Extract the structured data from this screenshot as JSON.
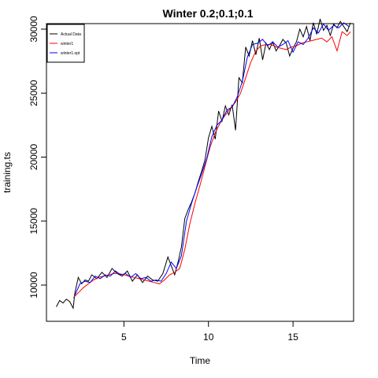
{
  "chart_data": {
    "type": "line",
    "title": "Winter 0.2;0.1;0.1",
    "xlabel": "Time",
    "ylabel": "training.ts",
    "xlim": [
      0.42,
      18.58
    ],
    "ylim": [
      7170,
      30430
    ],
    "x_ticks": [
      5,
      10,
      15
    ],
    "y_ticks": [
      10000,
      15000,
      20000,
      25000,
      30000
    ],
    "x_tick_labels": [
      "5",
      "10",
      "15"
    ],
    "y_tick_labels": [
      "10000",
      "15000",
      "20000",
      "25000",
      "30000"
    ],
    "grid": false,
    "legend_position": "top-left",
    "series": [
      {
        "name": "Actual Data",
        "color": "#000000",
        "x": [
          1.0,
          1.2,
          1.4,
          1.6,
          1.8,
          2.0,
          2.1,
          2.3,
          2.5,
          2.7,
          2.9,
          3.1,
          3.4,
          3.7,
          4.0,
          4.3,
          4.6,
          4.9,
          5.2,
          5.5,
          5.8,
          6.1,
          6.4,
          6.7,
          7.0,
          7.3,
          7.6,
          7.8,
          8.0,
          8.2,
          8.4,
          8.6,
          8.8,
          9.0,
          9.2,
          9.4,
          9.6,
          9.8,
          10.0,
          10.2,
          10.4,
          10.6,
          10.8,
          11.0,
          11.2,
          11.4,
          11.6,
          11.8,
          12.0,
          12.2,
          12.4,
          12.6,
          12.8,
          13.0,
          13.2,
          13.4,
          13.6,
          13.8,
          14.0,
          14.2,
          14.4,
          14.6,
          14.8,
          15.0,
          15.2,
          15.4,
          15.6,
          15.8,
          16.0,
          16.2,
          16.4,
          16.6,
          16.8,
          17.0,
          17.2,
          17.4,
          17.6,
          17.8,
          18.0,
          18.2,
          18.4
        ],
        "values": [
          8300,
          8800,
          8600,
          8900,
          8700,
          8200,
          9400,
          10600,
          10100,
          10400,
          10300,
          10800,
          10500,
          11000,
          10600,
          11300,
          10900,
          10700,
          11100,
          10300,
          10800,
          10200,
          10700,
          10400,
          10300,
          10900,
          12200,
          11500,
          10800,
          11800,
          13000,
          15200,
          15900,
          16500,
          17200,
          18100,
          18900,
          19800,
          21500,
          22400,
          21400,
          23600,
          22800,
          24000,
          23300,
          24100,
          22100,
          26200,
          25800,
          28600,
          27900,
          29100,
          28000,
          29300,
          27600,
          28900,
          28400,
          29000,
          28300,
          28700,
          29200,
          28900,
          27900,
          28500,
          29000,
          30000,
          29400,
          30200,
          29100,
          30500,
          29600,
          30800,
          29900,
          30300,
          29500,
          30400,
          30100,
          30600,
          30200,
          29800,
          30500
        ]
      },
      {
        "name": "winter1",
        "color": "#ff0000",
        "x": [
          2.0,
          2.3,
          2.6,
          2.9,
          3.2,
          3.5,
          3.8,
          4.1,
          4.4,
          4.7,
          5.0,
          5.3,
          5.6,
          5.9,
          6.2,
          6.5,
          6.8,
          7.1,
          7.4,
          7.7,
          8.0,
          8.3,
          8.6,
          8.9,
          9.2,
          9.5,
          9.8,
          10.1,
          10.4,
          10.7,
          11.0,
          11.3,
          11.6,
          11.9,
          12.2,
          12.5,
          12.8,
          13.1,
          13.4,
          13.7,
          14.0,
          14.3,
          14.6,
          14.9,
          15.2,
          15.5,
          15.8,
          16.1,
          16.4,
          16.7,
          17.0,
          17.3,
          17.6,
          17.9,
          18.2,
          18.4
        ],
        "values": [
          9000,
          9400,
          9800,
          10100,
          10400,
          10600,
          10700,
          10800,
          10900,
          10900,
          10800,
          10700,
          10600,
          10500,
          10400,
          10300,
          10200,
          10100,
          10400,
          10800,
          11000,
          11300,
          12800,
          14800,
          16400,
          17800,
          19300,
          20800,
          21900,
          22700,
          23300,
          23800,
          24300,
          25000,
          26200,
          27400,
          28300,
          28700,
          28800,
          28800,
          28600,
          28500,
          28400,
          28600,
          28700,
          28900,
          29000,
          29100,
          29200,
          29300,
          29000,
          29400,
          28300,
          29800,
          29500,
          29800
        ]
      },
      {
        "name": "winter1.opt",
        "color": "#0000ff",
        "x": [
          2.1,
          2.4,
          2.7,
          3.0,
          3.3,
          3.6,
          3.9,
          4.2,
          4.5,
          4.8,
          5.1,
          5.4,
          5.7,
          6.0,
          6.3,
          6.6,
          6.9,
          7.2,
          7.5,
          7.8,
          8.1,
          8.4,
          8.7,
          9.0,
          9.3,
          9.6,
          9.9,
          10.2,
          10.5,
          10.8,
          11.1,
          11.4,
          11.7,
          12.0,
          12.3,
          12.6,
          12.9,
          13.2,
          13.5,
          13.8,
          14.1,
          14.4,
          14.7,
          15.0,
          15.3,
          15.6,
          15.9,
          16.2,
          16.5,
          16.8,
          17.1,
          17.4,
          17.7,
          18.0,
          18.3
        ],
        "values": [
          9200,
          10100,
          10300,
          10200,
          10700,
          10500,
          10800,
          10700,
          11100,
          10800,
          10900,
          10600,
          10900,
          10500,
          10600,
          10300,
          10400,
          10300,
          10900,
          11800,
          11300,
          12300,
          15000,
          16400,
          17600,
          18700,
          19900,
          21600,
          22500,
          22900,
          23700,
          23900,
          24700,
          25900,
          27800,
          28800,
          28900,
          29200,
          28700,
          29000,
          28600,
          28800,
          29100,
          28200,
          29000,
          28800,
          29300,
          30100,
          29700,
          30400,
          29900,
          30300,
          30100,
          30500,
          30200
        ]
      }
    ]
  }
}
